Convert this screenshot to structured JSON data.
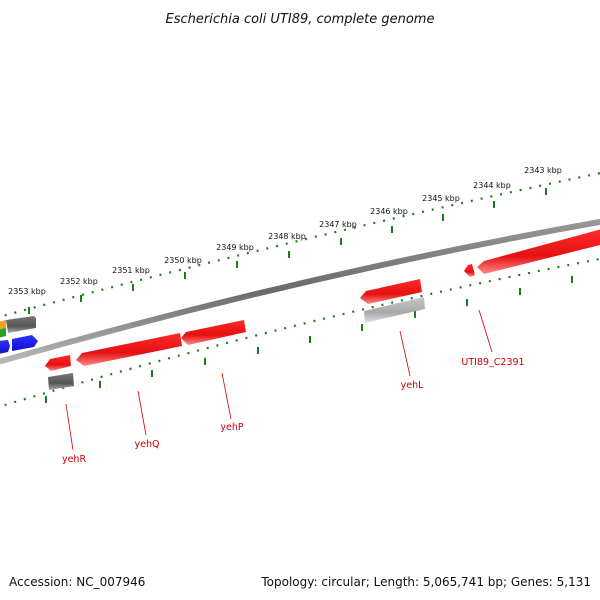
{
  "title": "Escherichia coli UTI89, complete genome",
  "footer": {
    "accession": "Accession: NC_007946",
    "summary": "Topology: circular; Length: 5,065,741 bp; Genes: 5,131"
  },
  "ticks": {
    "labels": [
      "2353 kbp",
      "2352 kbp",
      "2351 kbp",
      "2350 kbp",
      "2349 kbp",
      "2348 kbp",
      "2347 kbp",
      "2346 kbp",
      "2345 kbp",
      "2344 kbp",
      "2343 kbp"
    ]
  },
  "genes": {
    "labels": [
      "yehR",
      "yehQ",
      "yehP",
      "yehL",
      "UTI89_C2391"
    ]
  },
  "colors": {
    "backbone": "#808080",
    "gene": "#ee1111",
    "tick": "#1e7b1e",
    "label": "#cc0000",
    "gray_feature": "#666666",
    "light_gray_feature": "#b8b8b8",
    "blue_feature": "#1a1aee"
  }
}
